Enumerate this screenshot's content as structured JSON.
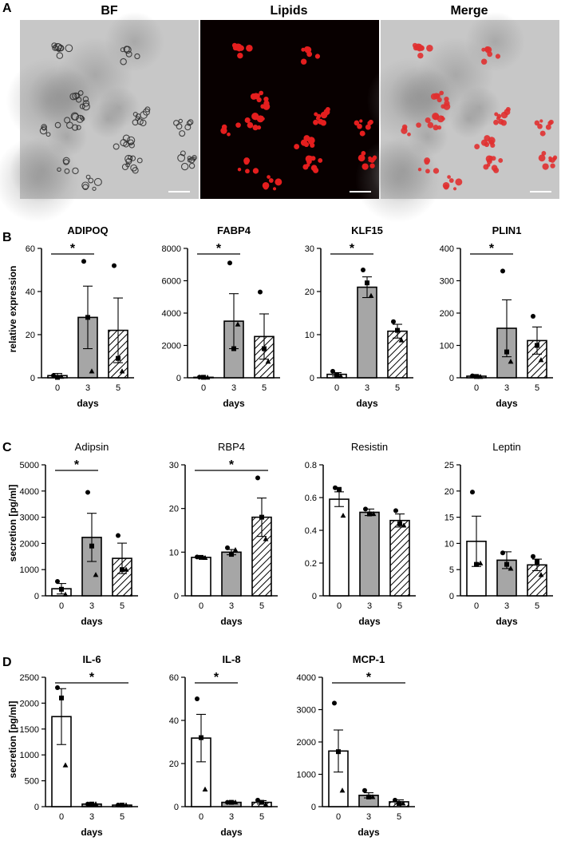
{
  "figure": {
    "panel_letters": [
      "A",
      "B",
      "C",
      "D"
    ],
    "micrographs": [
      {
        "label": "BF",
        "kind": "brightfield"
      },
      {
        "label": "Lipids",
        "kind": "fluorescence"
      },
      {
        "label": "Merge",
        "kind": "merge"
      }
    ],
    "colors": {
      "bar_day0": "#ffffff",
      "bar_day3": "#a6a6a6",
      "bar_day5": "hatched",
      "lipid": "#e41e1e",
      "axis": "#000000"
    },
    "significance_marker": "*",
    "ylabels": {
      "B": "relative expression",
      "C": "secretion [pg/ml]",
      "D": "secretion [pg/ml]"
    }
  },
  "chart_data": [
    {
      "type": "bar",
      "panel": "B",
      "title": "ADIPOQ",
      "categories": [
        "0",
        "3",
        "5"
      ],
      "xlabel": "days",
      "ylabel": "relative expression",
      "ylim": [
        0,
        60
      ],
      "yticks": [
        0,
        20,
        40,
        60
      ],
      "values": [
        1,
        28,
        22
      ],
      "sem": [
        1,
        14.5,
        15
      ],
      "points": [
        [
          1,
          0.2,
          0.5
        ],
        [
          54,
          28,
          3
        ],
        [
          52,
          9,
          3
        ]
      ],
      "significance": [
        [
          0,
          1
        ]
      ]
    },
    {
      "type": "bar",
      "panel": "B",
      "title": "FABP4",
      "categories": [
        "0",
        "3",
        "5"
      ],
      "xlabel": "days",
      "ylabel": "",
      "ylim": [
        0,
        8000
      ],
      "yticks": [
        0,
        2000,
        4000,
        6000,
        8000
      ],
      "values": [
        30,
        3500,
        2550
      ],
      "sem": [
        10,
        1700,
        1400
      ],
      "points": [
        [
          40,
          30,
          20
        ],
        [
          7100,
          1800,
          3300
        ],
        [
          5300,
          1800,
          1000
        ]
      ],
      "significance": [
        [
          0,
          1
        ]
      ]
    },
    {
      "type": "bar",
      "panel": "B",
      "title": "KLF15",
      "categories": [
        "0",
        "3",
        "5"
      ],
      "xlabel": "days",
      "ylabel": "",
      "ylim": [
        0,
        30
      ],
      "yticks": [
        0,
        10,
        20,
        30
      ],
      "values": [
        0.8,
        21,
        10.8
      ],
      "sem": [
        0.4,
        2.4,
        1.6
      ],
      "points": [
        [
          1.5,
          0.6,
          0.4
        ],
        [
          25,
          22,
          19
        ],
        [
          13,
          11,
          8.7
        ]
      ],
      "significance": [
        [
          0,
          1
        ]
      ]
    },
    {
      "type": "bar",
      "panel": "B",
      "title": "PLIN1",
      "categories": [
        "0",
        "3",
        "5"
      ],
      "xlabel": "days",
      "ylabel": "",
      "ylim": [
        0,
        400
      ],
      "yticks": [
        0,
        100,
        200,
        300,
        400
      ],
      "values": [
        5,
        153,
        115
      ],
      "sem": [
        2,
        88,
        42
      ],
      "points": [
        [
          6,
          4,
          3
        ],
        [
          330,
          80,
          50
        ],
        [
          190,
          100,
          55
        ]
      ],
      "significance": [
        [
          0,
          1
        ]
      ]
    },
    {
      "type": "bar",
      "panel": "C",
      "title": "Adipsin",
      "categories": [
        "0",
        "3",
        "5"
      ],
      "xlabel": "days",
      "ylabel": "secretion [pg/ml]",
      "ylim": [
        0,
        5000
      ],
      "yticks": [
        0,
        1000,
        2000,
        3000,
        4000,
        5000
      ],
      "values": [
        270,
        2230,
        1430
      ],
      "sem": [
        200,
        920,
        580
      ],
      "points": [
        [
          550,
          250,
          50
        ],
        [
          3950,
          1900,
          800
        ],
        [
          2300,
          1000,
          1000
        ]
      ],
      "significance": [
        [
          0,
          1
        ]
      ]
    },
    {
      "type": "bar",
      "panel": "C",
      "title": "RBP4",
      "categories": [
        "0",
        "3",
        "5"
      ],
      "xlabel": "days",
      "ylabel": "",
      "ylim": [
        0,
        30
      ],
      "yticks": [
        0,
        10,
        20,
        30
      ],
      "values": [
        8.8,
        10,
        18
      ],
      "sem": [
        0.2,
        0.6,
        4.4
      ],
      "points": [
        [
          8.9,
          8.8,
          8.7
        ],
        [
          11,
          9.5,
          10.5
        ],
        [
          27,
          18,
          13
        ]
      ],
      "significance": [
        [
          0,
          2
        ]
      ]
    },
    {
      "type": "bar",
      "panel": "C",
      "title": "Resistin",
      "categories": [
        "0",
        "3",
        "5"
      ],
      "xlabel": "days",
      "ylabel": "",
      "ylim": [
        0,
        0.8
      ],
      "yticks": [
        0,
        0.2,
        0.4,
        0.6,
        0.8
      ],
      "values": [
        0.59,
        0.51,
        0.46
      ],
      "sem": [
        0.045,
        0.02,
        0.04
      ],
      "points": [
        [
          0.66,
          0.65,
          0.49
        ],
        [
          0.53,
          0.5,
          0.5
        ],
        [
          0.52,
          0.44,
          0.43
        ]
      ],
      "significance": []
    },
    {
      "type": "bar",
      "panel": "C",
      "title": "Leptin",
      "categories": [
        "0",
        "3",
        "5"
      ],
      "xlabel": "days",
      "ylabel": "",
      "ylim": [
        0,
        25
      ],
      "yticks": [
        0,
        5,
        10,
        15,
        20,
        25
      ],
      "values": [
        10.4,
        6.8,
        5.9
      ],
      "sem": [
        4.8,
        1.6,
        1.1
      ],
      "points": [
        [
          19.8,
          6,
          6.2
        ],
        [
          8.2,
          6,
          5.2
        ],
        [
          7.5,
          6.5,
          4
        ]
      ],
      "significance": []
    },
    {
      "type": "bar",
      "panel": "D",
      "title": "IL-6",
      "categories": [
        "0",
        "3",
        "5"
      ],
      "xlabel": "days",
      "ylabel": "secretion [pg/ml]",
      "ylim": [
        0,
        2500
      ],
      "yticks": [
        0,
        500,
        1000,
        1500,
        2000,
        2500
      ],
      "values": [
        1740,
        50,
        30
      ],
      "sem": [
        540,
        10,
        8
      ],
      "points": [
        [
          2300,
          2100,
          800
        ],
        [
          50,
          50,
          50
        ],
        [
          30,
          30,
          30
        ]
      ],
      "significance": [
        [
          0,
          2
        ]
      ]
    },
    {
      "type": "bar",
      "panel": "D",
      "title": "IL-8",
      "categories": [
        "0",
        "3",
        "5"
      ],
      "xlabel": "days",
      "ylabel": "",
      "ylim": [
        0,
        60
      ],
      "yticks": [
        0,
        20,
        40,
        60
      ],
      "values": [
        31.8,
        2,
        2
      ],
      "sem": [
        11,
        0.5,
        0.8
      ],
      "points": [
        [
          50,
          32,
          8
        ],
        [
          2,
          2,
          2
        ],
        [
          3,
          2,
          1
        ]
      ],
      "significance": [
        [
          0,
          1
        ]
      ]
    },
    {
      "type": "bar",
      "panel": "D",
      "title": "MCP-1",
      "categories": [
        "0",
        "3",
        "5"
      ],
      "xlabel": "days",
      "ylabel": "",
      "ylim": [
        0,
        4000
      ],
      "yticks": [
        0,
        1000,
        2000,
        3000,
        4000
      ],
      "values": [
        1720,
        350,
        150
      ],
      "sem": [
        650,
        80,
        60
      ],
      "points": [
        [
          3200,
          1700,
          500
        ],
        [
          500,
          300,
          300
        ],
        [
          200,
          100,
          100
        ]
      ],
      "significance": [
        [
          0,
          2
        ]
      ]
    }
  ]
}
